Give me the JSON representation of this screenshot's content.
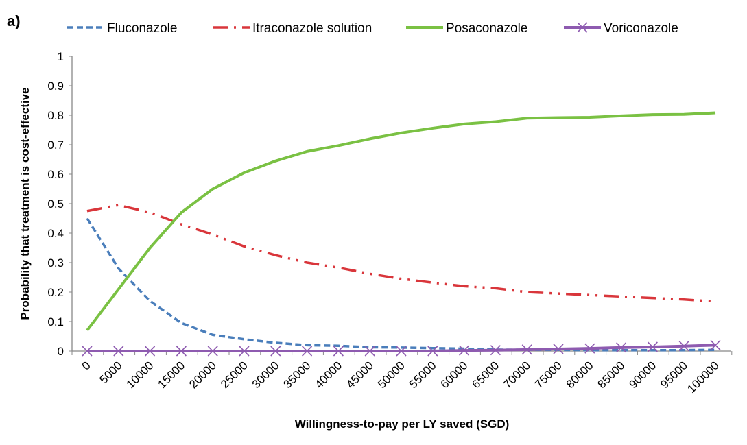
{
  "panel_label": "a)",
  "chart_data": {
    "type": "line",
    "title": "",
    "xlabel": "Willingness-to-pay per LY saved (SGD)",
    "ylabel": "Probability that treatment is cost-effective",
    "ylim": [
      0,
      1
    ],
    "yticks": [
      "0",
      "0.1",
      "0.2",
      "0.3",
      "0.4",
      "0.5",
      "0.6",
      "0.7",
      "0.8",
      "0.9",
      "1"
    ],
    "grid": false,
    "legend_position": "top",
    "categories": [
      "0",
      "5000",
      "10000",
      "15000",
      "20000",
      "25000",
      "30000",
      "35000",
      "40000",
      "45000",
      "50000",
      "55000",
      "60000",
      "65000",
      "70000",
      "75000",
      "80000",
      "85000",
      "90000",
      "95000",
      "100000"
    ],
    "series": [
      {
        "name": "Fluconazole",
        "color": "#4a7ebb",
        "style": "dashed",
        "values": [
          0.45,
          0.28,
          0.17,
          0.095,
          0.055,
          0.04,
          0.028,
          0.02,
          0.018,
          0.013,
          0.012,
          0.01,
          0.008,
          0.005,
          0.004,
          0.004,
          0.003,
          0.003,
          0.003,
          0.003,
          0.004
        ]
      },
      {
        "name": "Itraconazole solution",
        "color": "#d9363b",
        "style": "dash-dot-dot",
        "values": [
          0.475,
          0.495,
          0.47,
          0.43,
          0.395,
          0.355,
          0.325,
          0.3,
          0.283,
          0.262,
          0.245,
          0.232,
          0.22,
          0.213,
          0.2,
          0.195,
          0.19,
          0.185,
          0.18,
          0.175,
          0.168
        ]
      },
      {
        "name": "Posaconazole",
        "color": "#7ac143",
        "style": "solid",
        "values": [
          0.07,
          0.21,
          0.35,
          0.47,
          0.55,
          0.605,
          0.645,
          0.677,
          0.697,
          0.72,
          0.74,
          0.756,
          0.77,
          0.778,
          0.79,
          0.792,
          0.793,
          0.798,
          0.802,
          0.803,
          0.808
        ]
      },
      {
        "name": "Voriconazole",
        "color": "#8e5bb0",
        "style": "solid-x",
        "values": [
          0,
          0,
          0,
          0,
          0,
          0,
          0,
          0,
          0,
          0,
          0,
          0,
          0.002,
          0.003,
          0.005,
          0.007,
          0.009,
          0.012,
          0.014,
          0.017,
          0.02
        ]
      }
    ]
  }
}
